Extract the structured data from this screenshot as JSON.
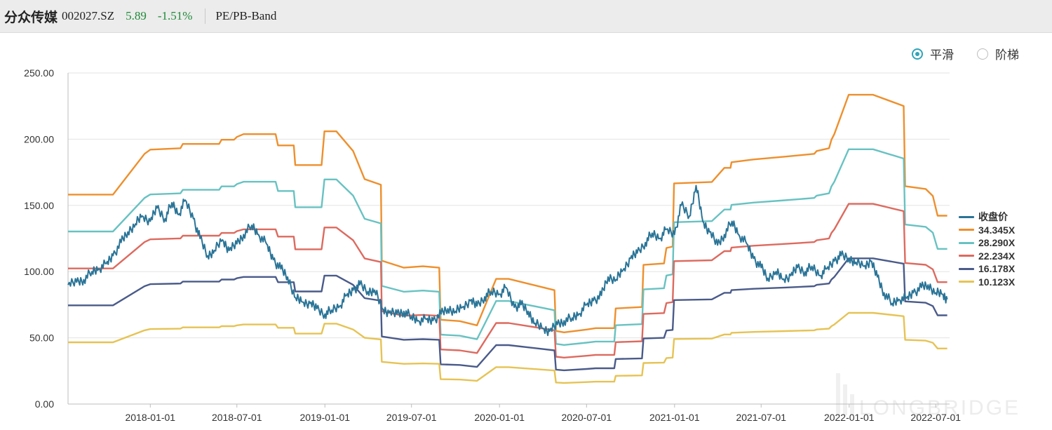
{
  "header": {
    "name": "分众传媒",
    "code": "002027.SZ",
    "price": "5.89",
    "change": "-1.51%",
    "mode": "PE/PB-Band"
  },
  "toggles": {
    "smooth": "平滑",
    "step": "阶梯",
    "selected": "smooth"
  },
  "watermark": "LONGBRIDGE",
  "colors": {
    "price": "#2a7497",
    "band1": "#ee8f2c",
    "band2": "#68c2c2",
    "band3": "#dd6a5f",
    "band4": "#4a5b8a",
    "band5": "#e6c354"
  },
  "chart_data": {
    "type": "line",
    "title": "",
    "xlabel": "",
    "ylabel": "",
    "ylim": [
      0,
      250
    ],
    "y_ticks": [
      "250.00",
      "200.00",
      "150.00",
      "100.00",
      "50.00",
      "0.00"
    ],
    "x_ticks": [
      "2018-01-01",
      "2018-07-01",
      "2019-01-01",
      "2019-07-01",
      "2020-01-01",
      "2020-07-01",
      "2021-01-01",
      "2021-07-01",
      "2022-01-01",
      "2022-07-01"
    ],
    "x_range": [
      "2017-07-13",
      "2022-07-30"
    ],
    "grid": true,
    "legend_position": "right",
    "multiplier_bands": [
      {
        "name": "34.345X",
        "ratio": 34.345
      },
      {
        "name": "28.290X",
        "ratio": 28.29
      },
      {
        "name": "22.234X",
        "ratio": 22.234
      },
      {
        "name": "16.178X",
        "ratio": 16.178
      },
      {
        "name": "10.123X",
        "ratio": 10.123
      }
    ],
    "band_base": {
      "name": "16.178X",
      "points": [
        [
          "2017-07-13",
          74.5
        ],
        [
          "2017-10-15",
          74.5
        ],
        [
          "2017-12-20",
          89
        ],
        [
          "2018-01-01",
          90.5
        ],
        [
          "2018-03-05",
          91
        ],
        [
          "2018-03-10",
          92.5
        ],
        [
          "2018-05-25",
          92.5
        ],
        [
          "2018-05-30",
          94
        ],
        [
          "2018-06-25",
          94
        ],
        [
          "2018-07-01",
          95
        ],
        [
          "2018-07-15",
          96
        ],
        [
          "2018-09-20",
          96
        ],
        [
          "2018-09-25",
          92
        ],
        [
          "2018-10-28",
          92
        ],
        [
          "2018-10-31",
          85
        ],
        [
          "2018-12-25",
          85
        ],
        [
          "2018-12-31",
          97
        ],
        [
          "2019-01-25",
          97
        ],
        [
          "2019-03-01",
          90
        ],
        [
          "2019-03-25",
          80
        ],
        [
          "2019-04-28",
          78
        ],
        [
          "2019-04-30",
          51
        ],
        [
          "2019-06-15",
          48.5
        ],
        [
          "2019-07-25",
          49
        ],
        [
          "2019-08-28",
          48.5
        ],
        [
          "2019-08-31",
          30
        ],
        [
          "2019-10-10",
          29.5
        ],
        [
          "2019-11-15",
          28
        ],
        [
          "2019-12-25",
          44.5
        ],
        [
          "2020-01-20",
          44.5
        ],
        [
          "2020-04-25",
          40.5
        ],
        [
          "2020-04-28",
          26
        ],
        [
          "2020-05-15",
          25.5
        ],
        [
          "2020-07-01",
          26.5
        ],
        [
          "2020-07-20",
          27
        ],
        [
          "2020-08-28",
          27
        ],
        [
          "2020-08-31",
          34
        ],
        [
          "2020-10-25",
          34.5
        ],
        [
          "2020-10-28",
          49.5
        ],
        [
          "2020-12-10",
          50
        ],
        [
          "2020-12-15",
          55.5
        ],
        [
          "2020-12-28",
          56
        ],
        [
          "2020-12-31",
          78.5
        ],
        [
          "2021-03-20",
          79
        ],
        [
          "2021-04-15",
          84
        ],
        [
          "2021-04-28",
          84
        ],
        [
          "2021-04-30",
          86
        ],
        [
          "2021-06-15",
          87
        ],
        [
          "2021-08-20",
          88
        ],
        [
          "2021-10-20",
          89
        ],
        [
          "2021-10-25",
          90
        ],
        [
          "2021-11-20",
          91
        ],
        [
          "2021-11-25",
          94
        ],
        [
          "2021-12-01",
          96
        ],
        [
          "2021-12-31",
          110
        ],
        [
          "2022-02-20",
          110
        ],
        [
          "2022-04-25",
          106
        ],
        [
          "2022-04-28",
          77.5
        ],
        [
          "2022-06-10",
          76.5
        ],
        [
          "2022-06-25",
          74
        ],
        [
          "2022-07-05",
          67
        ],
        [
          "2022-07-25",
          67
        ]
      ]
    },
    "series_price": {
      "name": "收盘价",
      "points": [
        [
          "2017-07-13",
          90
        ],
        [
          "2017-07-31",
          92
        ],
        [
          "2017-08-15",
          94
        ],
        [
          "2017-09-01",
          100
        ],
        [
          "2017-09-15",
          102
        ],
        [
          "2017-10-01",
          106
        ],
        [
          "2017-10-15",
          112
        ],
        [
          "2017-11-01",
          122
        ],
        [
          "2017-11-15",
          130
        ],
        [
          "2017-12-01",
          136
        ],
        [
          "2017-12-15",
          142
        ],
        [
          "2018-01-01",
          138
        ],
        [
          "2018-01-15",
          148
        ],
        [
          "2018-02-01",
          140
        ],
        [
          "2018-02-15",
          152
        ],
        [
          "2018-03-01",
          143
        ],
        [
          "2018-03-15",
          154
        ],
        [
          "2018-04-01",
          140
        ],
        [
          "2018-04-15",
          125
        ],
        [
          "2018-05-01",
          112
        ],
        [
          "2018-05-15",
          116
        ],
        [
          "2018-06-01",
          124
        ],
        [
          "2018-06-15",
          116
        ],
        [
          "2018-07-01",
          121
        ],
        [
          "2018-07-15",
          128
        ],
        [
          "2018-08-01",
          135
        ],
        [
          "2018-08-15",
          128
        ],
        [
          "2018-09-01",
          121
        ],
        [
          "2018-09-15",
          109
        ],
        [
          "2018-10-01",
          102
        ],
        [
          "2018-10-15",
          96
        ],
        [
          "2018-11-01",
          80
        ],
        [
          "2018-11-15",
          77
        ],
        [
          "2018-12-01",
          76
        ],
        [
          "2018-12-15",
          72
        ],
        [
          "2019-01-01",
          68
        ],
        [
          "2019-01-15",
          71
        ],
        [
          "2019-02-01",
          74
        ],
        [
          "2019-02-15",
          82
        ],
        [
          "2019-03-01",
          86
        ],
        [
          "2019-03-15",
          90
        ],
        [
          "2019-04-01",
          85
        ],
        [
          "2019-04-15",
          86
        ],
        [
          "2019-05-01",
          72
        ],
        [
          "2019-05-15",
          69
        ],
        [
          "2019-06-01",
          68
        ],
        [
          "2019-06-15",
          70
        ],
        [
          "2019-07-01",
          66
        ],
        [
          "2019-07-15",
          63
        ],
        [
          "2019-08-01",
          64
        ],
        [
          "2019-08-15",
          63
        ],
        [
          "2019-09-01",
          68
        ],
        [
          "2019-09-15",
          72
        ],
        [
          "2019-10-01",
          70
        ],
        [
          "2019-10-15",
          73
        ],
        [
          "2019-11-01",
          78
        ],
        [
          "2019-11-15",
          74
        ],
        [
          "2019-12-01",
          81
        ],
        [
          "2019-12-15",
          85
        ],
        [
          "2020-01-01",
          83
        ],
        [
          "2020-01-15",
          88
        ],
        [
          "2020-02-01",
          73
        ],
        [
          "2020-02-15",
          75
        ],
        [
          "2020-03-01",
          70
        ],
        [
          "2020-03-15",
          61
        ],
        [
          "2020-04-01",
          57
        ],
        [
          "2020-04-15",
          55
        ],
        [
          "2020-05-01",
          60
        ],
        [
          "2020-05-15",
          63
        ],
        [
          "2020-06-01",
          65
        ],
        [
          "2020-06-15",
          68
        ],
        [
          "2020-07-01",
          75
        ],
        [
          "2020-07-15",
          78
        ],
        [
          "2020-08-01",
          82
        ],
        [
          "2020-08-15",
          96
        ],
        [
          "2020-09-01",
          94
        ],
        [
          "2020-09-15",
          101
        ],
        [
          "2020-10-01",
          110
        ],
        [
          "2020-10-15",
          114
        ],
        [
          "2020-11-01",
          122
        ],
        [
          "2020-11-15",
          129
        ],
        [
          "2020-12-01",
          125
        ],
        [
          "2020-12-15",
          132
        ],
        [
          "2021-01-01",
          128
        ],
        [
          "2021-01-15",
          150
        ],
        [
          "2021-02-01",
          142
        ],
        [
          "2021-02-15",
          165
        ],
        [
          "2021-03-01",
          138
        ],
        [
          "2021-03-15",
          130
        ],
        [
          "2021-04-01",
          120
        ],
        [
          "2021-04-15",
          128
        ],
        [
          "2021-05-01",
          138
        ],
        [
          "2021-05-15",
          128
        ],
        [
          "2021-06-01",
          121
        ],
        [
          "2021-06-15",
          110
        ],
        [
          "2021-07-01",
          103
        ],
        [
          "2021-07-15",
          95
        ],
        [
          "2021-08-01",
          100
        ],
        [
          "2021-08-15",
          94
        ],
        [
          "2021-09-01",
          97
        ],
        [
          "2021-09-15",
          103
        ],
        [
          "2021-10-01",
          100
        ],
        [
          "2021-10-15",
          104
        ],
        [
          "2021-11-01",
          97
        ],
        [
          "2021-11-15",
          102
        ],
        [
          "2021-12-01",
          108
        ],
        [
          "2021-12-15",
          112
        ],
        [
          "2022-01-01",
          110
        ],
        [
          "2022-01-15",
          107
        ],
        [
          "2022-02-01",
          104
        ],
        [
          "2022-02-15",
          108
        ],
        [
          "2022-03-01",
          96
        ],
        [
          "2022-03-15",
          84
        ],
        [
          "2022-04-01",
          76
        ],
        [
          "2022-04-15",
          79
        ],
        [
          "2022-05-01",
          80
        ],
        [
          "2022-05-15",
          84
        ],
        [
          "2022-06-01",
          88
        ],
        [
          "2022-06-15",
          90
        ],
        [
          "2022-07-01",
          84
        ],
        [
          "2022-07-15",
          83
        ],
        [
          "2022-07-25",
          79
        ]
      ]
    }
  }
}
